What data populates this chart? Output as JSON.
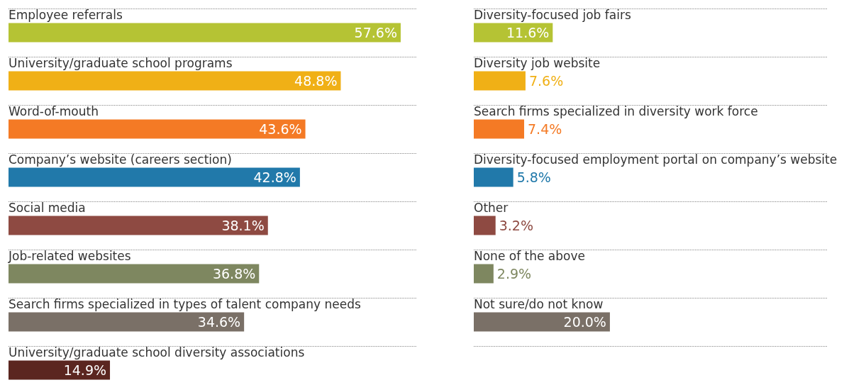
{
  "chart_data": [
    {
      "type": "bar",
      "orientation": "horizontal",
      "categories": [
        "Employee referrals",
        "University/graduate school programs",
        "Word-of-mouth",
        "Company’s website (careers section)",
        "Social media",
        "Job-related websites",
        "Search firms specialized in types of talent company needs",
        "University/graduate school diversity associations"
      ],
      "values": [
        57.6,
        48.8,
        43.6,
        42.8,
        38.1,
        36.8,
        34.6,
        14.9
      ],
      "value_labels": [
        "57.6%",
        "48.8%",
        "43.6%",
        "42.8%",
        "38.1%",
        "36.8%",
        "34.6%",
        "14.9%"
      ],
      "colors": [
        "#b5c334",
        "#f0b016",
        "#f47a25",
        "#2179aa",
        "#8e4a42",
        "#7e8760",
        "#7a7067",
        "#5b2620"
      ],
      "xlim": [
        0,
        60
      ],
      "tick_labels": "y",
      "grid": "y"
    },
    {
      "type": "bar",
      "orientation": "horizontal",
      "categories": [
        "Diversity-focused job fairs",
        "Diversity job website",
        "Search firms specialized in diversity work force",
        "Diversity-focused employment portal on company’s website",
        "Other",
        "None of the above",
        "Not sure/do not know"
      ],
      "values": [
        11.6,
        7.6,
        7.4,
        5.8,
        3.2,
        2.9,
        20.0
      ],
      "value_labels": [
        "11.6%",
        "7.6%",
        "7.4%",
        "5.8%",
        "3.2%",
        "2.9%",
        "20.0%"
      ],
      "colors": [
        "#b5c334",
        "#f0b016",
        "#f47a25",
        "#2179aa",
        "#8e4a42",
        "#7e8760",
        "#7a7067"
      ],
      "xlim": [
        0,
        52
      ],
      "tick_labels": "y",
      "grid": "y"
    }
  ]
}
